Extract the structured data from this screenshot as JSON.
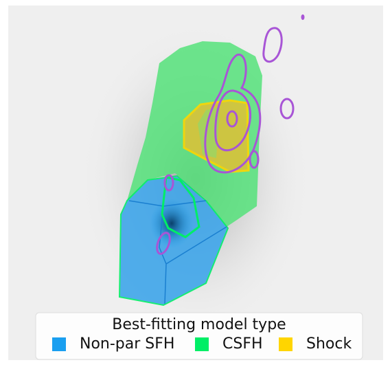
{
  "legend": {
    "title": "Best-fitting model type",
    "items": [
      {
        "label": "Non-par SFH",
        "color": "#1a9ff0"
      },
      {
        "label": "CSFH",
        "color": "#00ee66"
      },
      {
        "label": "Shock",
        "color": "#ffd500"
      }
    ]
  }
}
